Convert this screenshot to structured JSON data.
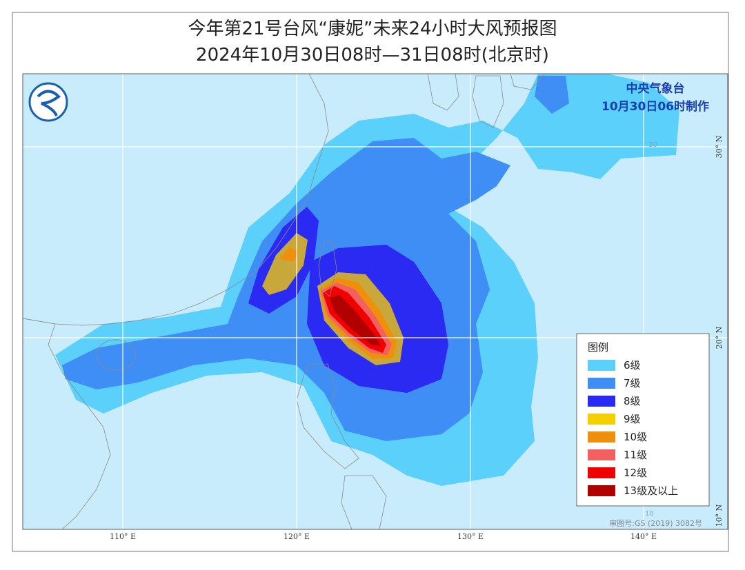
{
  "header": {
    "title": "今年第21号台风“康妮”未来24小时大风预报图",
    "subtitle": "2024年10月30日08时—31日08时(北京时)"
  },
  "agency": {
    "name": "中央气象台",
    "issued": "10月30日06时制作"
  },
  "legend": {
    "title": "图例",
    "items": [
      {
        "label": "6级",
        "color": "#5ad0fa"
      },
      {
        "label": "7级",
        "color": "#3f8ef5"
      },
      {
        "label": "8级",
        "color": "#2a2af2"
      },
      {
        "label": "9级",
        "color": "#f5cf00"
      },
      {
        "label": "10级",
        "color": "#f0900a"
      },
      {
        "label": "11级",
        "color": "#f26060"
      },
      {
        "label": "12级",
        "color": "#f00000"
      },
      {
        "label": "13级及以上",
        "color": "#b00000"
      }
    ]
  },
  "axes": {
    "longitude": [
      "110° E",
      "120° E",
      "130° E",
      "140° E"
    ],
    "latitude": [
      "30° N",
      "20° N",
      "10° N"
    ]
  },
  "map_labels": [
    "30",
    "10"
  ],
  "review_number": "审图号:GS (2019) 3082号"
}
